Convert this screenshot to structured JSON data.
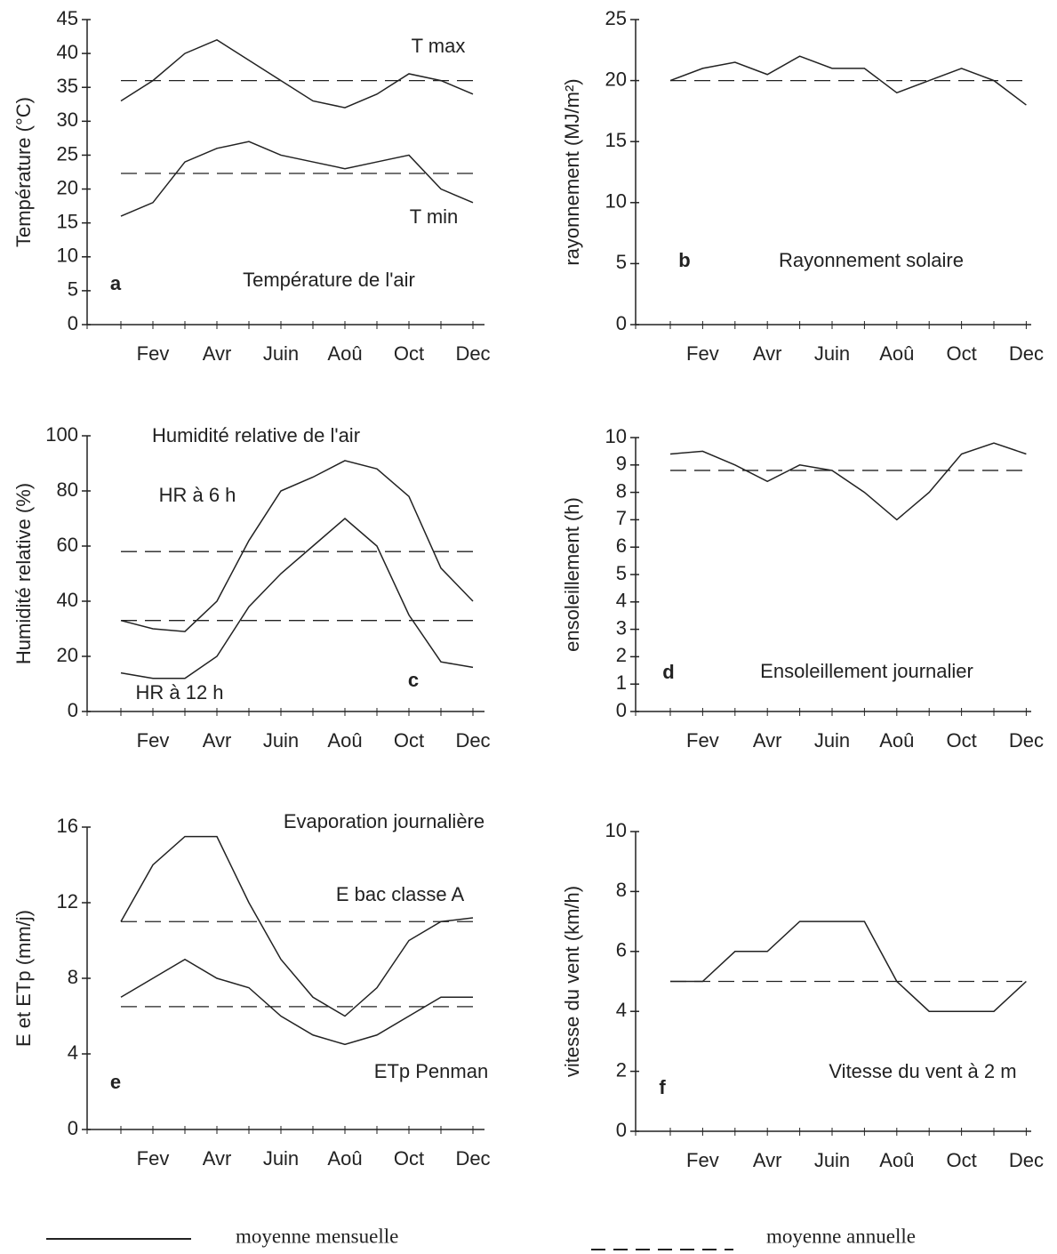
{
  "chart_data": [
    {
      "type": "line",
      "panel": "a",
      "title": "Température de l'air",
      "ylabel": "Température (°C)",
      "categories": [
        null,
        "Fev",
        null,
        "Avr",
        null,
        "Juin",
        null,
        "Aoû",
        null,
        "Oct",
        null,
        "Dec"
      ],
      "ylim": [
        0,
        45
      ],
      "yticks": [
        0,
        5,
        10,
        15,
        20,
        25,
        30,
        35,
        40,
        45
      ],
      "series": [
        {
          "name": "T max",
          "color": "#222222",
          "values": [
            33,
            36,
            40,
            42,
            39,
            36,
            33,
            32,
            34,
            37,
            36,
            34
          ]
        },
        {
          "name": "T min",
          "color": "#222222",
          "values": [
            16,
            18,
            24,
            26,
            27,
            25,
            24,
            23,
            24,
            25,
            20,
            18
          ]
        }
      ],
      "reference_lines": [
        36,
        22.3
      ],
      "reference_style": "dashed"
    },
    {
      "type": "line",
      "panel": "b",
      "title": "Rayonnement solaire",
      "ylabel": "rayonnement (MJ/m²)",
      "categories": [
        null,
        "Fev",
        null,
        "Avr",
        null,
        "Juin",
        null,
        "Aoû",
        null,
        "Oct",
        null,
        "Dec"
      ],
      "ylim": [
        0,
        25
      ],
      "yticks": [
        0,
        5,
        10,
        15,
        20,
        25
      ],
      "series": [
        {
          "color": "#222222",
          "values": [
            20,
            21,
            21.5,
            20.5,
            22,
            21,
            21,
            19,
            20,
            21,
            20,
            18
          ]
        }
      ],
      "reference_lines": [
        20
      ],
      "reference_style": "dashed"
    },
    {
      "type": "line",
      "panel": "c",
      "title": "Humidité relative de l'air",
      "ylabel": "Humidité relative  (%)",
      "categories": [
        null,
        "Fev",
        null,
        "Avr",
        null,
        "Juin",
        null,
        "Aoû",
        null,
        "Oct",
        null,
        "Dec"
      ],
      "ylim": [
        0,
        100
      ],
      "yticks": [
        0,
        20,
        40,
        60,
        80,
        100
      ],
      "series": [
        {
          "name": "HR à 6 h",
          "color": "#222222",
          "values": [
            33,
            30,
            29,
            40,
            62,
            80,
            85,
            91,
            88,
            78,
            52,
            40
          ]
        },
        {
          "name": "HR à 12 h",
          "color": "#222222",
          "values": [
            14,
            12,
            12,
            20,
            38,
            50,
            60,
            70,
            60,
            35,
            18,
            16
          ]
        }
      ],
      "reference_lines": [
        58,
        33
      ],
      "reference_style": "dashed"
    },
    {
      "type": "line",
      "panel": "d",
      "title": "Ensoleillement journalier",
      "ylabel": "ensoleillement  (h)",
      "categories": [
        null,
        "Fev",
        null,
        "Avr",
        null,
        "Juin",
        null,
        "Aoû",
        null,
        "Oct",
        null,
        "Dec"
      ],
      "ylim": [
        0,
        10
      ],
      "yticks": [
        0,
        1,
        2,
        3,
        4,
        5,
        6,
        7,
        8,
        9,
        10
      ],
      "series": [
        {
          "color": "#222222",
          "values": [
            9.4,
            9.5,
            9.0,
            8.4,
            9.0,
            8.8,
            8.0,
            7.0,
            8.0,
            9.4,
            9.8,
            9.4
          ]
        }
      ],
      "reference_lines": [
        8.8
      ],
      "reference_style": "dashed"
    },
    {
      "type": "line",
      "panel": "e",
      "title": "Evaporation journalière",
      "ylabel": "E et ETp (mm/j)",
      "categories": [
        null,
        "Fev",
        null,
        "Avr",
        null,
        "Juin",
        null,
        "Aoû",
        null,
        "Oct",
        null,
        "Dec"
      ],
      "ylim": [
        0,
        16
      ],
      "yticks": [
        0,
        4,
        8,
        12,
        16
      ],
      "series": [
        {
          "name": "E bac classe A",
          "color": "#222222",
          "values": [
            11,
            14,
            15.5,
            15.5,
            12,
            9,
            7,
            6,
            7.5,
            10,
            11,
            11.2
          ]
        },
        {
          "name": "ETp Penman",
          "color": "#222222",
          "values": [
            7,
            8,
            9,
            8,
            7.5,
            6,
            5,
            4.5,
            5,
            6,
            7,
            7
          ]
        }
      ],
      "reference_lines": [
        11,
        6.5
      ],
      "reference_style": "dashed"
    },
    {
      "type": "line",
      "panel": "f",
      "title": "Vitesse du vent à 2 m",
      "ylabel": "vitesse du vent (km/h)",
      "categories": [
        null,
        "Fev",
        null,
        "Avr",
        null,
        "Juin",
        null,
        "Aoû",
        null,
        "Oct",
        null,
        "Dec"
      ],
      "ylim": [
        0,
        10
      ],
      "yticks": [
        0,
        2,
        4,
        6,
        8,
        10
      ],
      "series": [
        {
          "color": "#222222",
          "values": [
            5,
            5,
            6,
            6,
            7,
            7,
            7,
            5,
            4,
            4,
            4,
            5
          ]
        }
      ],
      "reference_lines": [
        5
      ],
      "reference_style": "dashed"
    }
  ],
  "legend": {
    "items": [
      {
        "label": "moyenne mensuelle",
        "dash": false
      },
      {
        "label": "moyenne annuelle",
        "dash": true
      }
    ]
  }
}
